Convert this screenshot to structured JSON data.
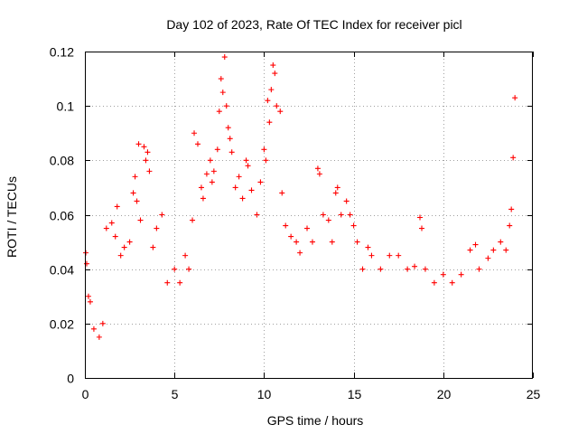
{
  "chart_data": {
    "type": "scatter",
    "title": "Day 102 of 2023, Rate Of TEC Index for receiver picl",
    "xlabel": "GPS time / hours",
    "ylabel": "ROTI / TECUs",
    "xlim": [
      0,
      25
    ],
    "ylim": [
      0,
      0.12
    ],
    "xticks": [
      0,
      5,
      10,
      15,
      20,
      25
    ],
    "yticks": [
      0,
      0.02,
      0.04,
      0.06,
      0.08,
      0.1,
      0.12
    ],
    "xtick_labels": [
      "0",
      "5",
      "10",
      "15",
      "20",
      "25"
    ],
    "ytick_labels": [
      "0",
      "0.02",
      "0.04",
      "0.06",
      "0.08",
      "0.1",
      "0.12"
    ],
    "grid": true,
    "marker": "+",
    "color": "#ff0000",
    "series": [
      {
        "points": [
          [
            0.05,
            0.046
          ],
          [
            0.1,
            0.042
          ],
          [
            0.2,
            0.03
          ],
          [
            0.3,
            0.028
          ],
          [
            0.5,
            0.018
          ],
          [
            0.8,
            0.015
          ],
          [
            1.0,
            0.02
          ],
          [
            1.2,
            0.055
          ],
          [
            1.5,
            0.057
          ],
          [
            1.7,
            0.052
          ],
          [
            1.8,
            0.063
          ],
          [
            2.0,
            0.045
          ],
          [
            2.2,
            0.048
          ],
          [
            2.5,
            0.05
          ],
          [
            2.7,
            0.068
          ],
          [
            2.8,
            0.074
          ],
          [
            2.9,
            0.065
          ],
          [
            3.0,
            0.086
          ],
          [
            3.1,
            0.058
          ],
          [
            3.3,
            0.085
          ],
          [
            3.4,
            0.08
          ],
          [
            3.5,
            0.083
          ],
          [
            3.6,
            0.076
          ],
          [
            3.8,
            0.048
          ],
          [
            4.0,
            0.055
          ],
          [
            4.3,
            0.06
          ],
          [
            4.6,
            0.035
          ],
          [
            5.0,
            0.04
          ],
          [
            5.3,
            0.035
          ],
          [
            5.6,
            0.045
          ],
          [
            5.8,
            0.04
          ],
          [
            6.0,
            0.058
          ],
          [
            6.1,
            0.09
          ],
          [
            6.3,
            0.086
          ],
          [
            6.5,
            0.07
          ],
          [
            6.6,
            0.066
          ],
          [
            6.8,
            0.075
          ],
          [
            7.0,
            0.08
          ],
          [
            7.1,
            0.072
          ],
          [
            7.2,
            0.076
          ],
          [
            7.4,
            0.084
          ],
          [
            7.5,
            0.098
          ],
          [
            7.6,
            0.11
          ],
          [
            7.7,
            0.105
          ],
          [
            7.8,
            0.118
          ],
          [
            7.9,
            0.1
          ],
          [
            8.0,
            0.092
          ],
          [
            8.1,
            0.088
          ],
          [
            8.2,
            0.083
          ],
          [
            8.4,
            0.07
          ],
          [
            8.6,
            0.074
          ],
          [
            8.8,
            0.066
          ],
          [
            9.0,
            0.08
          ],
          [
            9.1,
            0.078
          ],
          [
            9.3,
            0.069
          ],
          [
            9.6,
            0.06
          ],
          [
            9.8,
            0.072
          ],
          [
            10.0,
            0.084
          ],
          [
            10.1,
            0.08
          ],
          [
            10.2,
            0.102
          ],
          [
            10.3,
            0.094
          ],
          [
            10.4,
            0.106
          ],
          [
            10.5,
            0.115
          ],
          [
            10.6,
            0.112
          ],
          [
            10.7,
            0.1
          ],
          [
            10.9,
            0.098
          ],
          [
            11.0,
            0.068
          ],
          [
            11.2,
            0.056
          ],
          [
            11.5,
            0.052
          ],
          [
            11.8,
            0.05
          ],
          [
            12.0,
            0.046
          ],
          [
            12.4,
            0.055
          ],
          [
            12.7,
            0.05
          ],
          [
            13.0,
            0.077
          ],
          [
            13.1,
            0.075
          ],
          [
            13.3,
            0.06
          ],
          [
            13.6,
            0.058
          ],
          [
            13.8,
            0.05
          ],
          [
            14.0,
            0.068
          ],
          [
            14.1,
            0.07
          ],
          [
            14.3,
            0.06
          ],
          [
            14.6,
            0.065
          ],
          [
            14.8,
            0.06
          ],
          [
            15.0,
            0.056
          ],
          [
            15.2,
            0.05
          ],
          [
            15.5,
            0.04
          ],
          [
            15.8,
            0.048
          ],
          [
            16.0,
            0.045
          ],
          [
            16.5,
            0.04
          ],
          [
            17.0,
            0.045
          ],
          [
            17.5,
            0.045
          ],
          [
            18.0,
            0.04
          ],
          [
            18.4,
            0.041
          ],
          [
            18.7,
            0.059
          ],
          [
            18.8,
            0.055
          ],
          [
            19.0,
            0.04
          ],
          [
            19.5,
            0.035
          ],
          [
            20.0,
            0.038
          ],
          [
            20.5,
            0.035
          ],
          [
            21.0,
            0.038
          ],
          [
            21.5,
            0.047
          ],
          [
            21.8,
            0.049
          ],
          [
            22.0,
            0.04
          ],
          [
            22.5,
            0.044
          ],
          [
            22.8,
            0.047
          ],
          [
            23.2,
            0.05
          ],
          [
            23.5,
            0.047
          ],
          [
            23.7,
            0.056
          ],
          [
            23.8,
            0.062
          ],
          [
            23.9,
            0.081
          ],
          [
            24.0,
            0.103
          ]
        ]
      }
    ]
  },
  "colors": {
    "marker": "#ff0000",
    "axis": "#000000",
    "grid": "#a0a0a0",
    "background": "#ffffff"
  }
}
